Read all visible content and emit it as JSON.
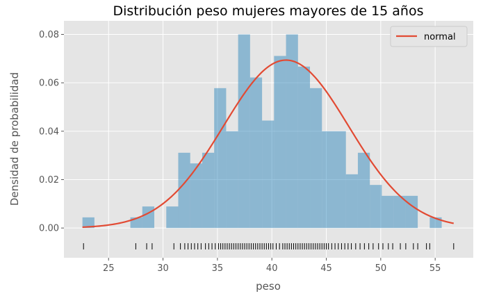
{
  "chart_data": {
    "type": "histogram",
    "title": "Distribución peso mujeres mayores de 15 años",
    "xlabel": "peso",
    "ylabel": "Densidad de probabilidad",
    "xlim": [
      20.9,
      58.5
    ],
    "ylim": [
      -0.0123,
      0.0856
    ],
    "xticks": [
      25,
      30,
      35,
      40,
      45,
      50,
      55
    ],
    "yticks": [
      0.0,
      0.02,
      0.04,
      0.06,
      0.08
    ],
    "ytick_labels": [
      "0.00",
      "0.02",
      "0.04",
      "0.06",
      "0.08"
    ],
    "grid": true,
    "legend_position": "top-right",
    "bins": {
      "edges": [
        22.6,
        23.7,
        24.8,
        25.9,
        27.0,
        28.1,
        29.2,
        30.3,
        31.4,
        32.5,
        33.6,
        34.7,
        35.8,
        36.9,
        38.0,
        39.1,
        40.2,
        41.3,
        42.4,
        43.5,
        44.6,
        45.7,
        46.8,
        47.9,
        49.0,
        50.1,
        51.2,
        52.3,
        53.4,
        54.5,
        55.6,
        56.7
      ],
      "density": [
        0.0044,
        0.0,
        0.0,
        0.0,
        0.0044,
        0.0089,
        0.0,
        0.0089,
        0.0311,
        0.0267,
        0.0311,
        0.0578,
        0.04,
        0.08,
        0.0622,
        0.0444,
        0.0711,
        0.08,
        0.0667,
        0.0578,
        0.04,
        0.04,
        0.0222,
        0.0311,
        0.0178,
        0.0133,
        0.0133,
        0.0133,
        0.0,
        0.0044,
        0.0
      ],
      "color": "#348abd"
    },
    "series": [
      {
        "name": "normal",
        "type": "line",
        "distribution": "normal",
        "mean": 41.3,
        "std": 5.75,
        "x_range": [
          22.6,
          56.7
        ],
        "color": "#e24a33"
      }
    ],
    "rug": {
      "color": "#000000",
      "values": [
        22.7,
        27.5,
        28.5,
        29.0,
        31.0,
        31.6,
        32.0,
        32.3,
        32.6,
        32.9,
        33.2,
        33.5,
        33.9,
        34.2,
        34.5,
        34.8,
        35.1,
        35.3,
        35.5,
        35.7,
        35.9,
        36.1,
        36.3,
        36.5,
        36.7,
        36.9,
        37.1,
        37.3,
        37.5,
        37.7,
        37.9,
        38.1,
        38.3,
        38.5,
        38.7,
        38.9,
        39.1,
        39.3,
        39.5,
        39.7,
        39.9,
        40.1,
        40.4,
        40.7,
        41.0,
        41.2,
        41.4,
        41.6,
        41.8,
        42.0,
        42.2,
        42.4,
        42.6,
        42.8,
        43.0,
        43.2,
        43.4,
        43.6,
        43.8,
        44.0,
        44.2,
        44.4,
        44.6,
        44.8,
        45.0,
        45.2,
        45.5,
        45.8,
        46.1,
        46.4,
        46.7,
        47.0,
        47.3,
        47.7,
        48.1,
        48.5,
        48.9,
        49.3,
        49.8,
        50.2,
        50.7,
        51.1,
        51.8,
        52.3,
        53.0,
        53.4,
        54.2,
        54.5,
        56.7
      ]
    }
  }
}
